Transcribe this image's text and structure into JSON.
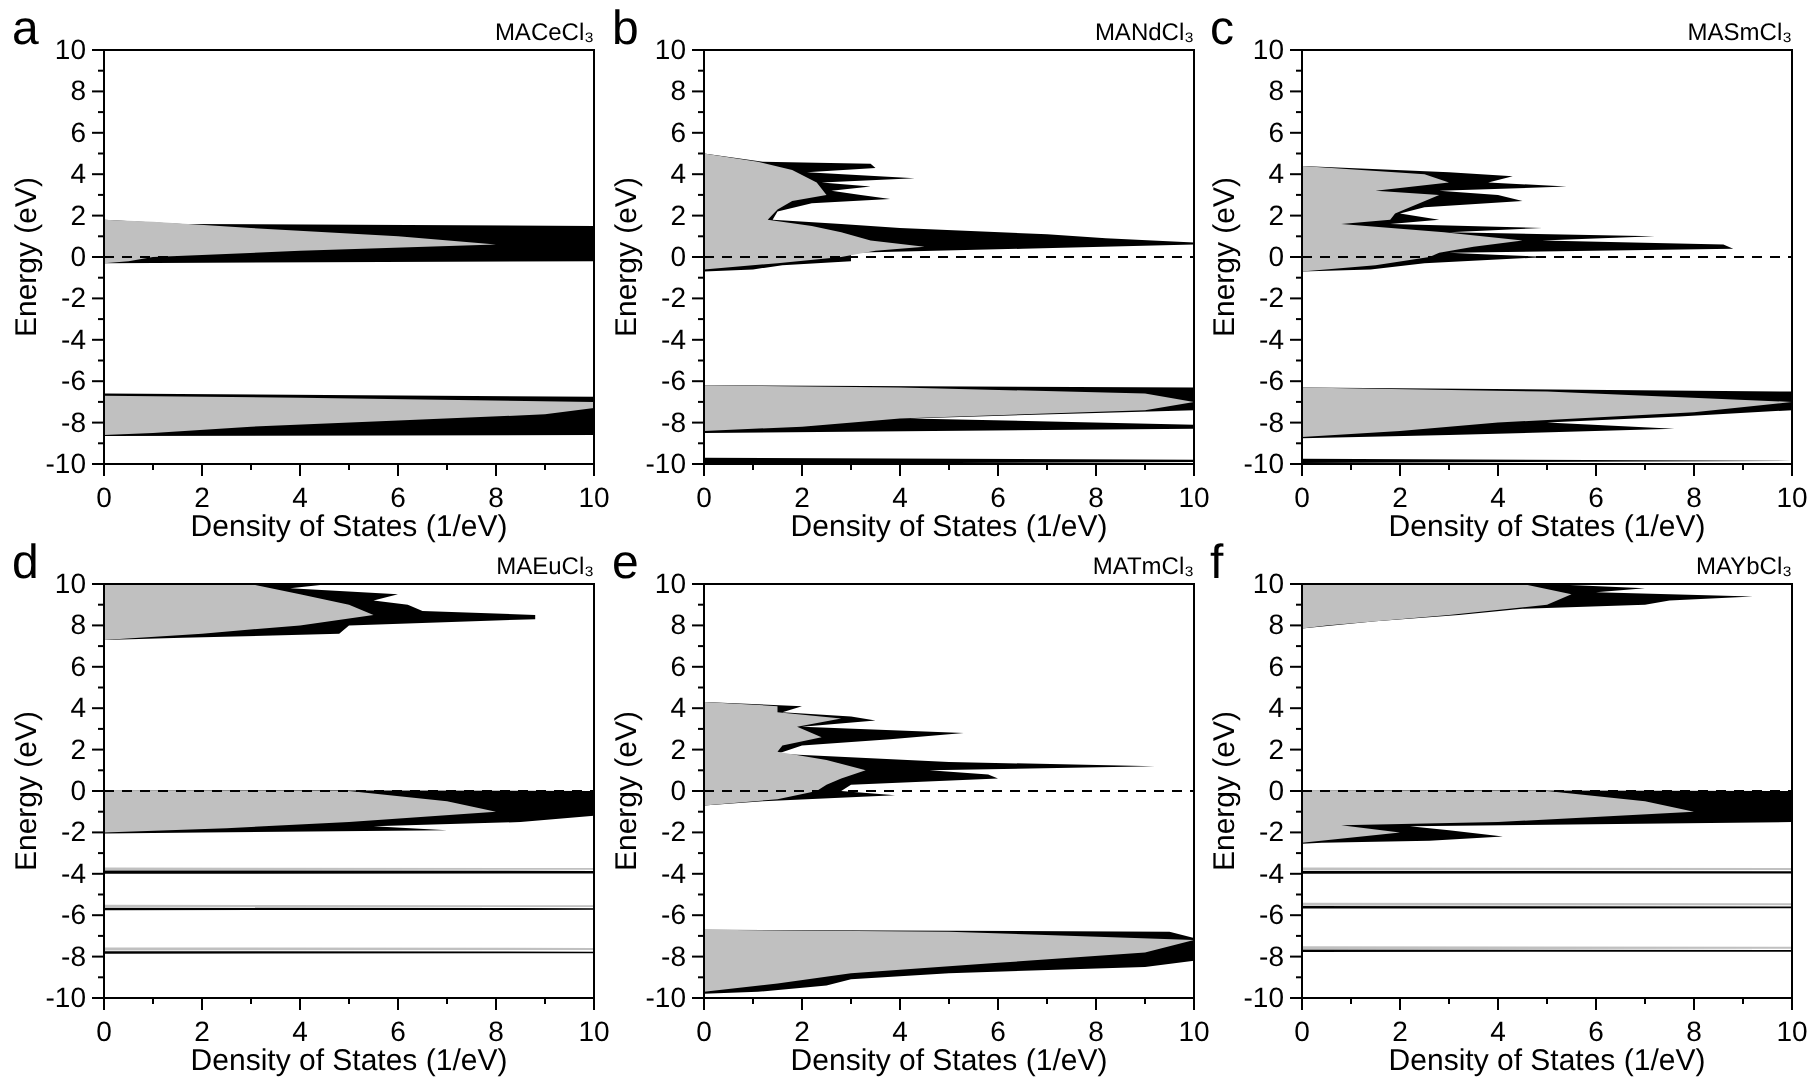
{
  "chart_data": [
    {
      "type": "area",
      "orientation": "horizontal",
      "title": "MACeCl₃",
      "annotations": [
        "a"
      ],
      "xlabel": "Density of States (1/eV)",
      "ylabel": "Energy (eV)",
      "xlim": [
        0,
        10
      ],
      "xticks": [
        0,
        {
          "value": 1,
          "label": null
        },
        2,
        {
          "value": 3,
          "label": null
        },
        4,
        {
          "value": 5,
          "label": null
        },
        6,
        {
          "value": 7,
          "label": null
        },
        8,
        {
          "value": 9,
          "label": null
        },
        10
      ],
      "ylim": [
        -10,
        10
      ],
      "yticks": [
        -10,
        {
          "value": -9,
          "label": null
        },
        -8,
        {
          "value": -7,
          "label": null
        },
        -6,
        {
          "value": -5,
          "label": null
        },
        -4,
        {
          "value": -3,
          "label": null
        },
        -2,
        {
          "value": -1,
          "label": null
        },
        0,
        {
          "value": 1,
          "label": null
        },
        2,
        {
          "value": 3,
          "label": null
        },
        4,
        {
          "value": 5,
          "label": null
        },
        6,
        {
          "value": 7,
          "label": null
        },
        8,
        {
          "value": 9,
          "label": null
        },
        10
      ],
      "series": [
        {
          "color": "#000000",
          "x": [
            2.0,
            1.8,
            1.6,
            1.5,
            1.3,
            1.1,
            0.9,
            0.7,
            0.5,
            0.3,
            0.1,
            0,
            -0.1,
            -0.2,
            -0.3,
            -0.5,
            -6.6,
            -6.75,
            -7.0,
            -7.2,
            -7.5,
            -7.8,
            -8.0,
            -8.2,
            -8.4,
            -8.6,
            -8.65,
            -10
          ],
          "values": [
            0,
            0,
            1.6,
            10,
            10,
            10,
            10,
            10,
            10,
            10,
            10,
            10,
            10,
            10,
            0,
            0,
            0,
            10,
            10,
            10,
            10,
            10,
            10,
            10,
            10,
            10,
            0,
            0
          ]
        },
        {
          "color": "#c0c0c0",
          "x": [
            1.8,
            1.7,
            1.4,
            1.0,
            0.6,
            0.3,
            0.1,
            0,
            -0.2,
            -0.3,
            -6.7,
            -6.8,
            -7.0,
            -7.3,
            -7.6,
            -7.9,
            -8.2,
            -8.5,
            -8.6
          ],
          "values": [
            0,
            1.0,
            3,
            6,
            8,
            4,
            2,
            1,
            0.5,
            0,
            0,
            4,
            10,
            10,
            9,
            6,
            3,
            1,
            0
          ]
        }
      ],
      "ref_lines": [
        {
          "axis": "y",
          "value": 0,
          "line_style": "dashed"
        }
      ]
    },
    {
      "type": "area",
      "orientation": "horizontal",
      "title": "MANdCl₃",
      "annotations": [
        "b"
      ],
      "xlabel": "Density of States (1/eV)",
      "ylabel": "Energy (eV)",
      "xlim": [
        0,
        10
      ],
      "xticks": [
        0,
        {
          "value": 1,
          "label": null
        },
        2,
        {
          "value": 3,
          "label": null
        },
        4,
        {
          "value": 5,
          "label": null
        },
        6,
        {
          "value": 7,
          "label": null
        },
        8,
        {
          "value": 9,
          "label": null
        },
        10
      ],
      "ylim": [
        -10,
        10
      ],
      "yticks": [
        -10,
        {
          "value": -9,
          "label": null
        },
        -8,
        {
          "value": -7,
          "label": null
        },
        -6,
        {
          "value": -5,
          "label": null
        },
        -4,
        {
          "value": -3,
          "label": null
        },
        -2,
        {
          "value": -1,
          "label": null
        },
        0,
        {
          "value": 1,
          "label": null
        },
        2,
        {
          "value": 3,
          "label": null
        },
        4,
        {
          "value": 5,
          "label": null
        },
        6,
        {
          "value": 7,
          "label": null
        },
        8,
        {
          "value": 9,
          "label": null
        },
        10
      ],
      "series": [
        {
          "color": "#000000",
          "x": [
            5.0,
            4.6,
            4.5,
            4.3,
            4.1,
            3.8,
            3.6,
            3.4,
            3.2,
            3.0,
            2.8,
            2.6,
            2.2,
            1.8,
            1.6,
            1.4,
            1.1,
            0.9,
            0.7,
            0.6,
            0.4,
            0.2,
            0,
            -0.2,
            -0.4,
            -0.6,
            -0.7,
            -6.2,
            -6.3,
            -6.6,
            -7.0,
            -7.4,
            -7.8,
            -8.1,
            -8.3,
            -8.5,
            -9.7,
            -9.8,
            -9.9,
            -10
          ],
          "values": [
            0,
            1.2,
            3.4,
            3.5,
            2.1,
            4.3,
            2.4,
            3.4,
            2.6,
            3.2,
            3.8,
            2.2,
            1.5,
            1.4,
            2.8,
            4.0,
            7.0,
            8.2,
            10,
            10,
            6.5,
            3.0,
            3.0,
            3.0,
            1.6,
            1.0,
            0,
            0,
            10,
            10,
            10,
            10,
            4.2,
            10,
            10,
            0,
            0,
            10,
            10,
            0
          ]
        },
        {
          "color": "#c0c0c0",
          "x": [
            5.0,
            4.6,
            4.2,
            3.6,
            3.0,
            2.7,
            2.3,
            1.8,
            1.5,
            1.2,
            0.8,
            0.5,
            0.3,
            0,
            -0.3,
            -0.6,
            -6.2,
            -6.3,
            -6.6,
            -7.0,
            -7.4,
            -7.8,
            -8.2,
            -8.4
          ],
          "values": [
            0,
            1.1,
            1.8,
            2.3,
            2.5,
            1.8,
            1.5,
            1.3,
            2.2,
            2.8,
            3.4,
            4.5,
            3.5,
            2.8,
            1.5,
            0,
            0,
            4,
            9,
            10,
            9,
            4,
            2,
            0
          ]
        }
      ],
      "ref_lines": [
        {
          "axis": "y",
          "value": 0,
          "line_style": "dashed"
        }
      ]
    },
    {
      "type": "area",
      "orientation": "horizontal",
      "title": "MASmCl₃",
      "annotations": [
        "c"
      ],
      "xlabel": "Density of States (1/eV)",
      "ylabel": "Energy (eV)",
      "xlim": [
        0,
        10
      ],
      "xticks": [
        0,
        {
          "value": 1,
          "label": null
        },
        2,
        {
          "value": 3,
          "label": null
        },
        4,
        {
          "value": 5,
          "label": null
        },
        6,
        {
          "value": 7,
          "label": null
        },
        8,
        {
          "value": 9,
          "label": null
        },
        10
      ],
      "ylim": [
        -10,
        10
      ],
      "yticks": [
        -10,
        {
          "value": -9,
          "label": null
        },
        -8,
        {
          "value": -7,
          "label": null
        },
        -6,
        {
          "value": -5,
          "label": null
        },
        -4,
        {
          "value": -3,
          "label": null
        },
        -2,
        {
          "value": -1,
          "label": null
        },
        0,
        {
          "value": 1,
          "label": null
        },
        2,
        {
          "value": 3,
          "label": null
        },
        4,
        {
          "value": 5,
          "label": null
        },
        6,
        {
          "value": 7,
          "label": null
        },
        8,
        {
          "value": 9,
          "label": null
        },
        10
      ],
      "series": [
        {
          "color": "#000000",
          "x": [
            4.4,
            4.1,
            3.9,
            3.6,
            3.4,
            3.2,
            3.0,
            2.7,
            2.4,
            2.1,
            1.8,
            1.6,
            1.4,
            1.2,
            1.0,
            0.8,
            0.6,
            0.4,
            0.2,
            0,
            -0.3,
            -0.6,
            -0.7,
            -6.3,
            -6.5,
            -7.0,
            -7.4,
            -7.7,
            -8.0,
            -8.3,
            -8.6,
            -8.75,
            -9.75,
            -9.85,
            -9.95
          ],
          "values": [
            0,
            3,
            4.3,
            3.8,
            5.4,
            2.8,
            4.0,
            4.5,
            2.5,
            2.0,
            2.8,
            1.8,
            4.9,
            3.0,
            7.2,
            4.9,
            8.6,
            8.8,
            3.0,
            5.0,
            2.5,
            1.4,
            0,
            0,
            10,
            10,
            10,
            7.7,
            5,
            7.6,
            3,
            0,
            0,
            10,
            0
          ]
        },
        {
          "color": "#c0c0c0",
          "x": [
            4.4,
            4.0,
            3.6,
            3.2,
            3.0,
            2.5,
            2.1,
            1.8,
            1.6,
            1.2,
            0.8,
            0.5,
            0.2,
            0,
            -0.4,
            -0.7,
            -6.3,
            -6.5,
            -7.0,
            -7.5,
            -8.0,
            -8.4,
            -8.7
          ],
          "values": [
            0,
            2.5,
            3.0,
            1.5,
            2.8,
            2.3,
            1.9,
            1.8,
            0.8,
            2.9,
            4.5,
            3.5,
            2.8,
            2.6,
            1.5,
            0,
            0,
            5,
            10,
            8,
            4,
            2,
            0
          ]
        }
      ],
      "ref_lines": [
        {
          "axis": "y",
          "value": 0,
          "line_style": "dashed"
        }
      ]
    },
    {
      "type": "area",
      "orientation": "horizontal",
      "title": "MAEuCl₃",
      "annotations": [
        "d"
      ],
      "xlabel": "Density of States (1/eV)",
      "ylabel": "Energy (eV)",
      "xlim": [
        0,
        10
      ],
      "xticks": [
        0,
        {
          "value": 1,
          "label": null
        },
        2,
        {
          "value": 3,
          "label": null
        },
        4,
        {
          "value": 5,
          "label": null
        },
        6,
        {
          "value": 7,
          "label": null
        },
        8,
        {
          "value": 9,
          "label": null
        },
        10
      ],
      "ylim": [
        -10,
        10
      ],
      "yticks": [
        -10,
        {
          "value": -9,
          "label": null
        },
        -8,
        {
          "value": -7,
          "label": null
        },
        -6,
        {
          "value": -5,
          "label": null
        },
        -4,
        {
          "value": -3,
          "label": null
        },
        -2,
        {
          "value": -1,
          "label": null
        },
        0,
        {
          "value": 1,
          "label": null
        },
        2,
        {
          "value": 3,
          "label": null
        },
        4,
        {
          "value": 5,
          "label": null
        },
        6,
        {
          "value": 7,
          "label": null
        },
        8,
        {
          "value": 9,
          "label": null
        },
        10
      ],
      "series": [
        {
          "color": "#000000",
          "x": [
            10,
            9.8,
            9.5,
            9.2,
            9.0,
            8.7,
            8.5,
            8.3,
            8.0,
            7.6,
            7.4,
            7.3,
            0.05,
            0,
            -0.3,
            -0.6,
            -0.9,
            -1.2,
            -1.5,
            -1.7,
            -1.9,
            -2.0,
            -2.05,
            -3.84,
            -3.86,
            -3.98,
            -4.0,
            -5.64,
            -5.66,
            -5.74,
            -5.76,
            -7.74,
            -7.76,
            -7.84,
            -7.86
          ],
          "values": [
            4.6,
            3.8,
            6.0,
            5.5,
            6.2,
            6.5,
            8.8,
            8.8,
            5.0,
            4.8,
            1.6,
            0,
            0,
            10,
            10,
            10,
            10,
            10,
            8.5,
            5.5,
            7.0,
            2.0,
            0,
            0,
            10,
            10,
            0,
            0,
            10,
            10,
            0,
            0,
            10,
            10,
            0
          ]
        },
        {
          "color": "#c0c0c0",
          "x": [
            10,
            9.5,
            9.0,
            8.5,
            8.0,
            7.6,
            7.3,
            0.05,
            0,
            -0.5,
            -1.0,
            -1.5,
            -1.8,
            -2.0,
            -3.7,
            -3.72,
            -3.8,
            -3.82,
            -5.5,
            -5.52,
            -5.6,
            -5.62,
            -7.56,
            -7.58,
            -7.68,
            -7.7
          ],
          "values": [
            3.0,
            4.0,
            5.0,
            5.5,
            4.0,
            2.0,
            0,
            0,
            5,
            7,
            8,
            5,
            2.5,
            0,
            0,
            10,
            10,
            0,
            0,
            10,
            10,
            0,
            0,
            10,
            10,
            0
          ]
        }
      ],
      "ref_lines": [
        {
          "axis": "y",
          "value": 0,
          "line_style": "dashed"
        }
      ]
    },
    {
      "type": "area",
      "orientation": "horizontal",
      "title": "MATmCl₃",
      "annotations": [
        "e"
      ],
      "xlabel": "Density of States (1/eV)",
      "ylabel": "Energy (eV)",
      "xlim": [
        0,
        10
      ],
      "xticks": [
        0,
        {
          "value": 1,
          "label": null
        },
        2,
        {
          "value": 3,
          "label": null
        },
        4,
        {
          "value": 5,
          "label": null
        },
        6,
        {
          "value": 7,
          "label": null
        },
        8,
        {
          "value": 9,
          "label": null
        },
        10
      ],
      "ylim": [
        -10,
        10
      ],
      "yticks": [
        -10,
        {
          "value": -9,
          "label": null
        },
        -8,
        {
          "value": -7,
          "label": null
        },
        -6,
        {
          "value": -5,
          "label": null
        },
        -4,
        {
          "value": -3,
          "label": null
        },
        -2,
        {
          "value": -1,
          "label": null
        },
        0,
        {
          "value": 1,
          "label": null
        },
        2,
        {
          "value": 3,
          "label": null
        },
        4,
        {
          "value": 5,
          "label": null
        },
        6,
        {
          "value": 7,
          "label": null
        },
        8,
        {
          "value": 9,
          "label": null
        },
        10
      ],
      "series": [
        {
          "color": "#000000",
          "x": [
            4.3,
            4.1,
            3.8,
            3.6,
            3.4,
            3.1,
            2.8,
            2.5,
            2.2,
            1.8,
            1.4,
            1.2,
            1.0,
            0.8,
            0.6,
            0.3,
            0,
            -0.2,
            -0.5,
            -0.7,
            -6.7,
            -6.8,
            -7.1,
            -7.5,
            -7.9,
            -8.2,
            -8.5,
            -8.8,
            -9.1,
            -9.4,
            -9.7,
            -9.8
          ],
          "values": [
            0,
            2.0,
            1.6,
            3.0,
            3.5,
            2.0,
            5.3,
            3.8,
            2.0,
            1.5,
            5.0,
            9.2,
            4.6,
            5.8,
            6.0,
            3.0,
            2.8,
            3.9,
            1.2,
            0,
            0,
            9.5,
            10,
            10,
            10,
            10,
            9.0,
            5.0,
            3.0,
            2.5,
            1.1,
            0
          ]
        },
        {
          "color": "#c0c0c0",
          "x": [
            4.3,
            4.1,
            3.8,
            3.5,
            3.1,
            2.6,
            2.2,
            1.9,
            1.5,
            1.0,
            0.6,
            0.3,
            0,
            -0.4,
            -0.7,
            -6.7,
            -6.8,
            -7.2,
            -7.8,
            -8.3,
            -8.8,
            -9.3,
            -9.7
          ],
          "values": [
            0,
            1.5,
            1.5,
            2.8,
            1.9,
            2.4,
            1.6,
            1.5,
            2.5,
            3.3,
            2.8,
            2.5,
            2.3,
            1.5,
            0,
            0,
            5,
            10,
            9,
            6,
            3,
            1.5,
            0
          ]
        }
      ],
      "ref_lines": [
        {
          "axis": "y",
          "value": 0,
          "line_style": "dashed"
        }
      ]
    },
    {
      "type": "area",
      "orientation": "horizontal",
      "title": "MAYbCl₃",
      "annotations": [
        "f"
      ],
      "xlabel": "Density of States (1/eV)",
      "ylabel": "Energy (eV)",
      "xlim": [
        0,
        10
      ],
      "xticks": [
        0,
        {
          "value": 1,
          "label": null
        },
        2,
        {
          "value": 3,
          "label": null
        },
        4,
        {
          "value": 5,
          "label": null
        },
        6,
        {
          "value": 7,
          "label": null
        },
        8,
        {
          "value": 9,
          "label": null
        },
        10
      ],
      "ylim": [
        -10,
        10
      ],
      "yticks": [
        -10,
        {
          "value": -9,
          "label": null
        },
        -8,
        {
          "value": -7,
          "label": null
        },
        -6,
        {
          "value": -5,
          "label": null
        },
        -4,
        {
          "value": -3,
          "label": null
        },
        -2,
        {
          "value": -1,
          "label": null
        },
        0,
        {
          "value": 1,
          "label": null
        },
        2,
        {
          "value": 3,
          "label": null
        },
        4,
        {
          "value": 5,
          "label": null
        },
        6,
        {
          "value": 7,
          "label": null
        },
        8,
        {
          "value": 9,
          "label": null
        },
        10
      ],
      "series": [
        {
          "color": "#000000",
          "x": [
            10,
            9.8,
            9.6,
            9.4,
            9.2,
            9.0,
            8.8,
            8.5,
            8.2,
            7.9,
            7.85,
            0.05,
            0,
            -0.3,
            -0.6,
            -0.9,
            -1.2,
            -1.5,
            -1.7,
            -1.9,
            -2.2,
            -2.4,
            -2.5,
            -2.55,
            -3.86,
            -3.88,
            -3.98,
            -4.0,
            -5.56,
            -5.58,
            -5.66,
            -5.68,
            -7.66,
            -7.68,
            -7.76,
            -7.78
          ],
          "values": [
            5.0,
            7.0,
            6.0,
            9.2,
            7.5,
            7.0,
            4.5,
            3.2,
            1.5,
            0.2,
            0,
            0,
            10,
            10,
            10,
            10,
            10,
            10,
            2.2,
            3.0,
            4.1,
            2.6,
            0.4,
            0,
            0,
            10,
            10,
            0,
            0,
            10,
            10,
            0,
            0,
            10,
            10,
            0
          ]
        },
        {
          "color": "#c0c0c0",
          "x": [
            10,
            9.5,
            9.0,
            8.5,
            8.0,
            7.85,
            0.05,
            0,
            -0.5,
            -1.0,
            -1.5,
            -1.65,
            -2.0,
            -2.5,
            -3.7,
            -3.72,
            -3.82,
            -3.84,
            -5.4,
            -5.42,
            -5.52,
            -5.54,
            -7.5,
            -7.52,
            -7.62,
            -7.64
          ],
          "values": [
            4.5,
            5.5,
            5.0,
            3.0,
            0.5,
            0,
            0,
            5,
            7,
            8,
            4,
            0.8,
            2,
            0,
            0,
            10,
            10,
            0,
            0,
            10,
            10,
            0,
            0,
            10,
            10,
            0
          ]
        }
      ],
      "ref_lines": [
        {
          "axis": "y",
          "value": 0,
          "line_style": "dashed"
        }
      ]
    }
  ]
}
